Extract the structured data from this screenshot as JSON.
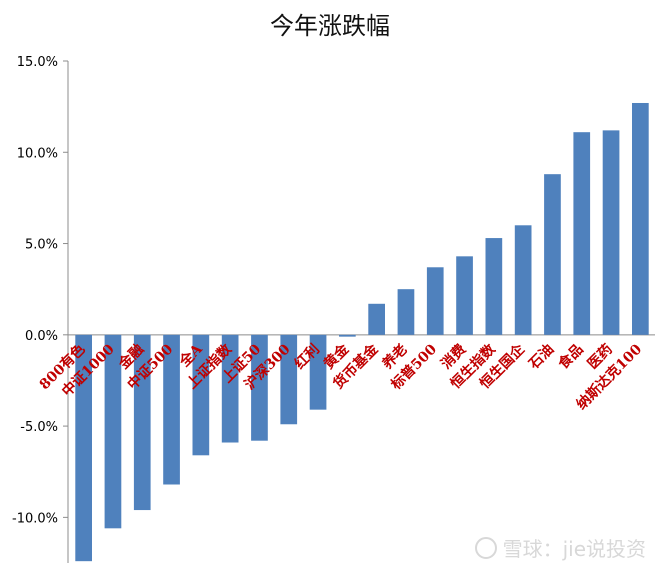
{
  "chart_data": {
    "type": "bar",
    "title": "今年涨跌幅",
    "xlabel": "",
    "ylabel": "",
    "ylim": [
      -12.5,
      15.0
    ],
    "yticks": [
      "15.0%",
      "10.0%",
      "5.0%",
      "0.0%",
      "-5.0%",
      "-10.0%"
    ],
    "ytick_values": [
      15,
      10,
      5,
      0,
      -5,
      -10
    ],
    "grid": false,
    "bar_color": "#4f81bd",
    "label_color": "#c00000",
    "categories": [
      "800有色",
      "中证1000",
      "金融",
      "中证500",
      "全A",
      "上证指数",
      "上证50",
      "沪深300",
      "红利",
      "黄金",
      "货币基金",
      "养老",
      "标普500",
      "消费",
      "恒生指数",
      "恒生国企",
      "石油",
      "食品",
      "医药",
      "纳斯达克100"
    ],
    "values": [
      -12.4,
      -10.6,
      -9.6,
      -8.2,
      -6.6,
      -5.9,
      -5.8,
      -4.9,
      -4.1,
      -0.1,
      1.7,
      2.5,
      3.7,
      4.3,
      5.3,
      6.0,
      8.8,
      11.1,
      11.2,
      12.7
    ]
  },
  "watermark": "雪球：jie说投资"
}
